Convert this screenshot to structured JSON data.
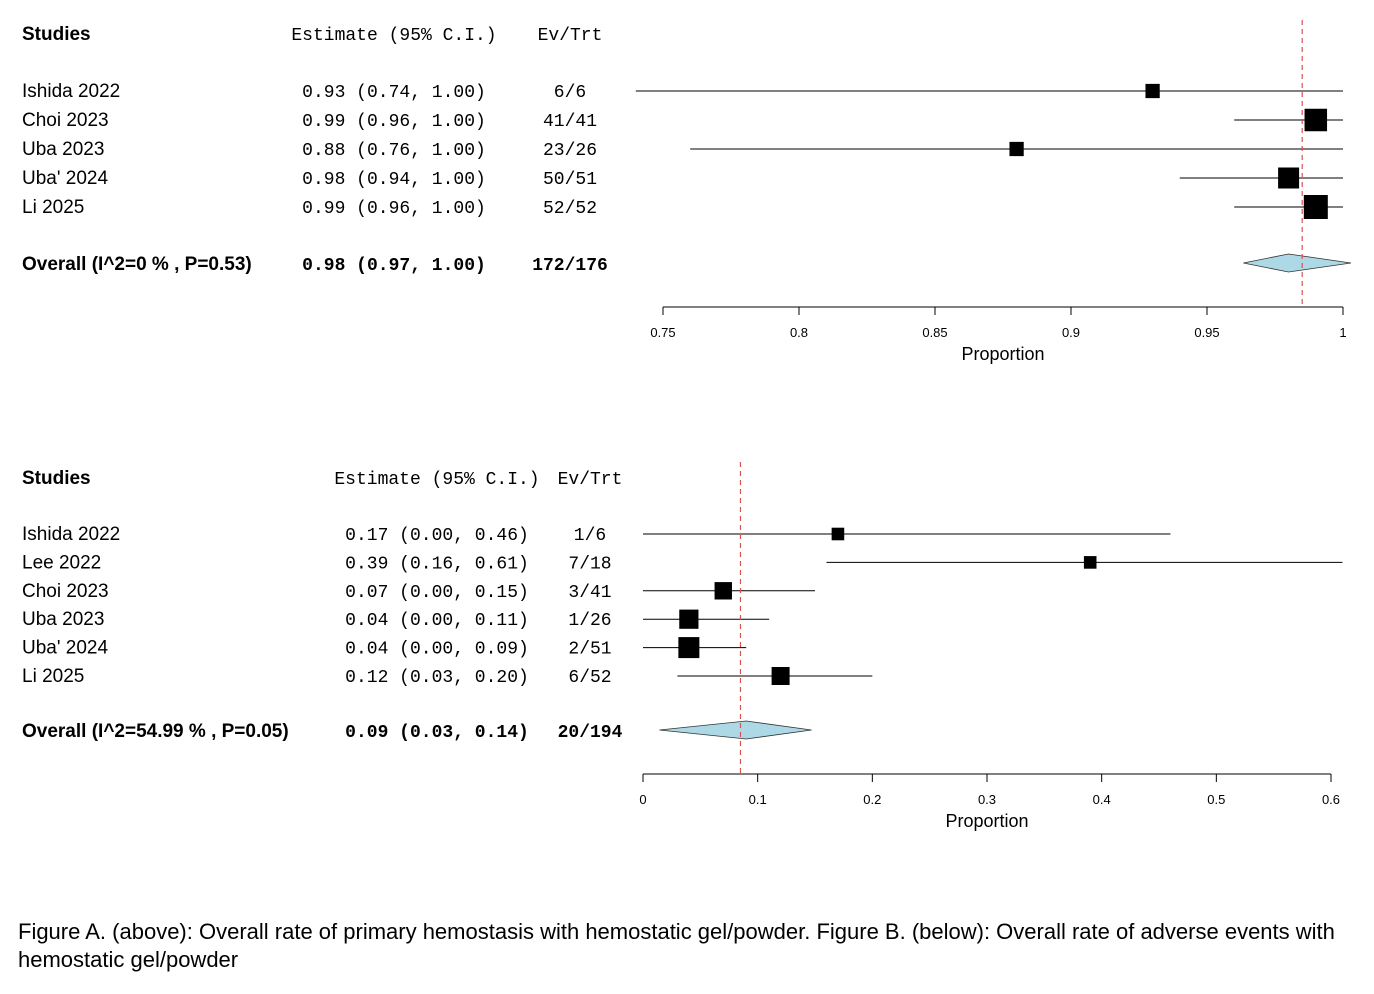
{
  "chart_data": [
    {
      "type": "forest",
      "headers": {
        "studies": "Studies",
        "estimate": "Estimate (95% C.I.)",
        "events": "Ev/Trt"
      },
      "studies": [
        {
          "name": "Ishida 2022",
          "estimate": 0.93,
          "lower": 0.74,
          "upper": 1.0,
          "ci_text": "0.93 (0.74, 1.00)",
          "ev_trt": "6/6",
          "weight": 0.35
        },
        {
          "name": "Choi 2023",
          "estimate": 0.99,
          "lower": 0.96,
          "upper": 1.0,
          "ci_text": "0.99 (0.96, 1.00)",
          "ev_trt": "41/41",
          "weight": 0.9
        },
        {
          "name": "Uba 2023",
          "estimate": 0.88,
          "lower": 0.76,
          "upper": 1.0,
          "ci_text": "0.88 (0.76, 1.00)",
          "ev_trt": "23/26",
          "weight": 0.35
        },
        {
          "name": "Uba' 2024",
          "estimate": 0.98,
          "lower": 0.94,
          "upper": 1.0,
          "ci_text": "0.98 (0.94, 1.00)",
          "ev_trt": "50/51",
          "weight": 0.8
        },
        {
          "name": "Li 2025",
          "estimate": 0.99,
          "lower": 0.96,
          "upper": 1.0,
          "ci_text": "0.99 (0.96, 1.00)",
          "ev_trt": "52/52",
          "weight": 1.0
        }
      ],
      "overall": {
        "label": "Overall (I^2=0 % , P=0.53)",
        "estimate": 0.98,
        "lower": 0.97,
        "upper": 1.0,
        "ci_text": "0.98 (0.97, 1.00)",
        "ev_trt": "172/176"
      },
      "xlim": [
        0.75,
        1.0
      ],
      "ticks": [
        0.75,
        0.8,
        0.85,
        0.9,
        0.95,
        1
      ],
      "tick_labels": [
        "0.75",
        "0.8",
        "0.85",
        "0.9",
        "0.95",
        "1"
      ],
      "xlabel": "Proportion",
      "reference_line": 0.985
    },
    {
      "type": "forest",
      "headers": {
        "studies": "Studies",
        "estimate": "Estimate (95% C.I.)",
        "events": "Ev/Trt"
      },
      "studies": [
        {
          "name": "Ishida 2022",
          "estimate": 0.17,
          "lower": 0.0,
          "upper": 0.46,
          "ci_text": "0.17 (0.00, 0.46)",
          "ev_trt": "1/6",
          "weight": 0.3
        },
        {
          "name": "Lee 2022",
          "estimate": 0.39,
          "lower": 0.16,
          "upper": 0.61,
          "ci_text": "0.39 (0.16, 0.61)",
          "ev_trt": "7/18",
          "weight": 0.3
        },
        {
          "name": "Choi 2023",
          "estimate": 0.07,
          "lower": 0.0,
          "upper": 0.15,
          "ci_text": "0.07 (0.00, 0.15)",
          "ev_trt": "3/41",
          "weight": 0.7
        },
        {
          "name": "Uba 2023",
          "estimate": 0.04,
          "lower": 0.0,
          "upper": 0.11,
          "ci_text": "0.04 (0.00, 0.11)",
          "ev_trt": "1/26",
          "weight": 0.85
        },
        {
          "name": "Uba' 2024",
          "estimate": 0.04,
          "lower": 0.0,
          "upper": 0.09,
          "ci_text": "0.04 (0.00, 0.09)",
          "ev_trt": "2/51",
          "weight": 1.0
        },
        {
          "name": "Li 2025",
          "estimate": 0.12,
          "lower": 0.03,
          "upper": 0.2,
          "ci_text": "0.12 (0.03, 0.20)",
          "ev_trt": "6/52",
          "weight": 0.75
        }
      ],
      "overall": {
        "label": "Overall (I^2=54.99 % , P=0.05)",
        "estimate": 0.09,
        "lower": 0.03,
        "upper": 0.14,
        "ci_text": "0.09 (0.03, 0.14)",
        "ev_trt": "20/194"
      },
      "xlim": [
        0,
        0.6
      ],
      "ticks": [
        0,
        0.1,
        0.2,
        0.3,
        0.4,
        0.5,
        0.6
      ],
      "tick_labels": [
        "0",
        "0.1",
        "0.2",
        "0.3",
        "0.4",
        "0.5",
        "0.6"
      ],
      "xlabel": "Proportion",
      "reference_line": 0.085
    }
  ],
  "caption": "Figure A. (above): Overall rate of primary hemostasis with hemostatic gel/powder. Figure B. (below): Overall rate of adverse events with hemostatic gel/powder",
  "colors": {
    "reference_line": "#d9534f",
    "diamond_fill": "#add8e6",
    "square": "#000000",
    "line": "#000000"
  }
}
